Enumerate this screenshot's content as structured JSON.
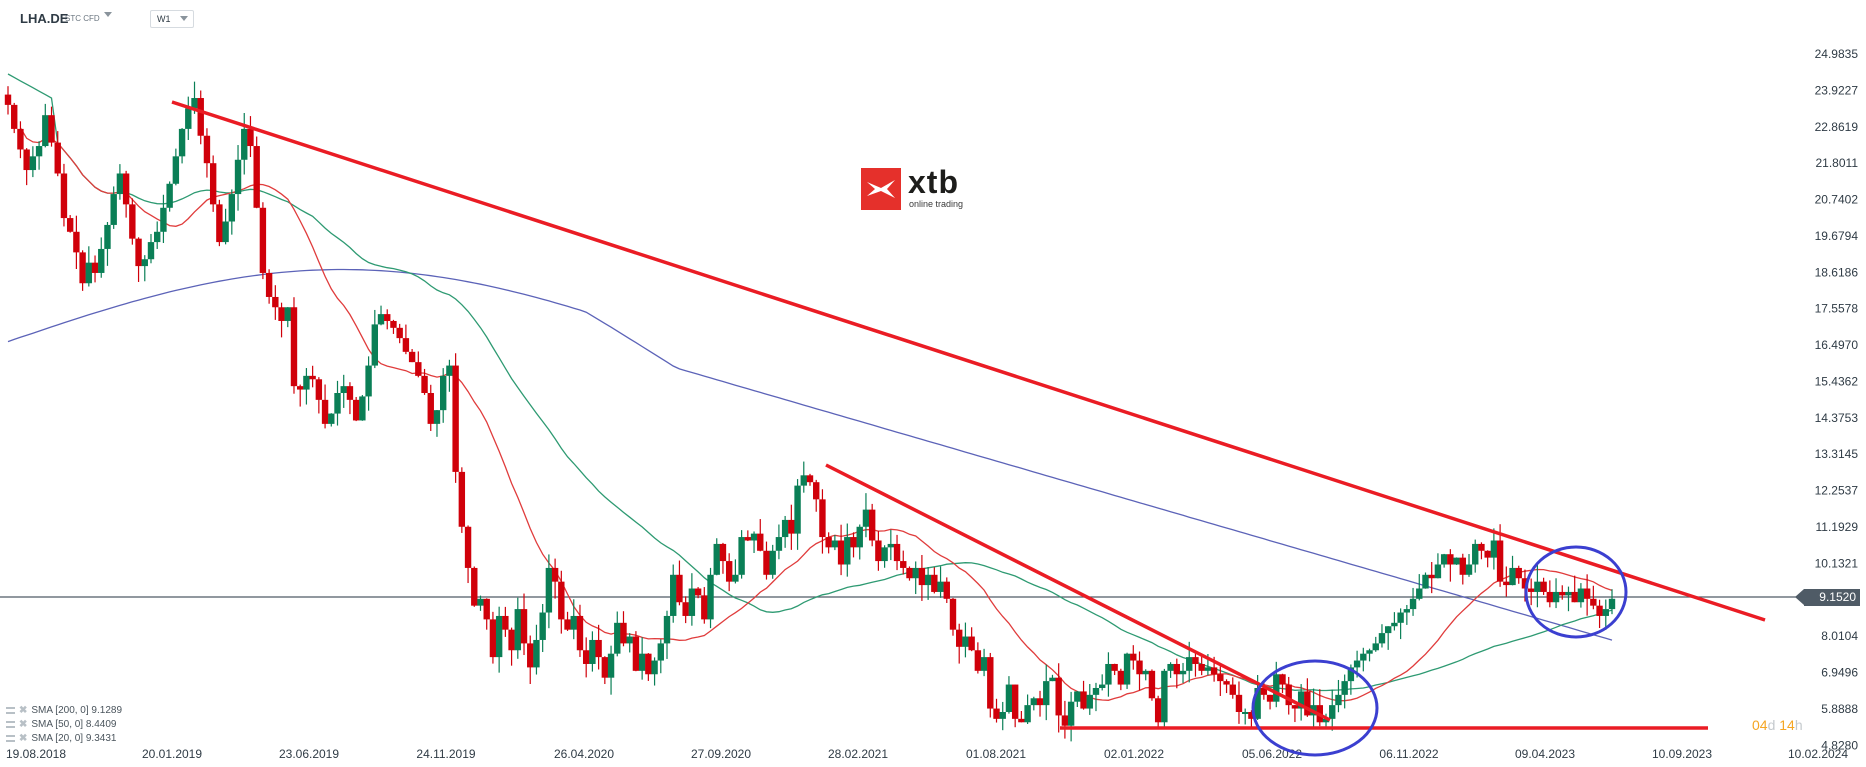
{
  "header": {
    "symbol": "LHA.DE",
    "instrument_type": "STC CFD",
    "timeframe": "W1"
  },
  "logo": {
    "word": "xtb",
    "tagline": "online trading"
  },
  "current_price": {
    "label": "9.1520",
    "value": 9.152,
    "line_color": "#4f5b66"
  },
  "countdown": {
    "days": "04",
    "days_unit": "d",
    "hours": "14",
    "hours_unit": "h"
  },
  "legend": [
    {
      "label": "SMA [200,  0] 9.1289"
    },
    {
      "label": "SMA [50,  0] 8.4409"
    },
    {
      "label": "SMA [20,  0] 9.3431"
    }
  ],
  "colors": {
    "bull": "#0a7f56",
    "bear": "#d0000a",
    "sma20": "#e03c3c",
    "sma50": "#2e9a72",
    "sma200": "#5c63b8",
    "trendline": "#ea1c24",
    "ellipse": "#3b3fd0"
  },
  "chart_data": {
    "type": "candlestick",
    "title": "LHA.DE STC CFD W1",
    "xlabel": "",
    "ylabel": "",
    "ylim": [
      4.828,
      24.9835
    ],
    "y_ticks": [
      "24.9835",
      "23.9227",
      "22.8619",
      "21.8011",
      "20.7402",
      "19.6794",
      "18.6186",
      "17.5578",
      "16.4970",
      "15.4362",
      "14.3753",
      "13.3145",
      "12.2537",
      "11.1929",
      "10.1321",
      "9.1520",
      "8.0104",
      "6.9496",
      "5.8888",
      "4.8280"
    ],
    "x_ticks": [
      "19.08.2018",
      "20.01.2019",
      "23.06.2019",
      "24.11.2019",
      "26.04.2020",
      "27.09.2020",
      "28.02.2021",
      "01.08.2021",
      "02.01.2022",
      "05.06.2022",
      "06.11.2022",
      "09.04.2023",
      "10.09.2023",
      "10.02.2024"
    ],
    "grid": false,
    "closes_weekly_approx": [
      23.5,
      22.8,
      22.2,
      21.6,
      22.0,
      22.3,
      23.2,
      22.4,
      21.5,
      20.2,
      19.8,
      19.2,
      18.3,
      18.9,
      18.6,
      19.3,
      20.0,
      20.9,
      21.5,
      20.6,
      19.6,
      18.8,
      19.0,
      19.5,
      19.8,
      20.5,
      21.2,
      22.0,
      22.8,
      23.4,
      23.7,
      22.6,
      21.8,
      20.6,
      19.5,
      20.1,
      20.9,
      21.9,
      22.8,
      22.3,
      20.5,
      18.6,
      17.9,
      17.6,
      17.2,
      17.6,
      15.3,
      15.2,
      15.6,
      15.5,
      14.9,
      14.2,
      14.5,
      15.1,
      15.3,
      14.9,
      14.3,
      15.0,
      15.9,
      17.1,
      17.4,
      17.2,
      17.0,
      16.7,
      16.3,
      16.0,
      15.6,
      15.1,
      14.2,
      14.6,
      15.6,
      15.9,
      12.8,
      11.2,
      10.0,
      8.9,
      9.1,
      8.5,
      7.4,
      8.6,
      8.2,
      7.6,
      8.8,
      7.8,
      7.1,
      7.9,
      8.7,
      10.0,
      9.6,
      8.5,
      8.2,
      8.6,
      7.6,
      7.2,
      7.9,
      7.4,
      6.8,
      7.5,
      8.4,
      7.8,
      8.0,
      7.0,
      7.5,
      6.9,
      7.3,
      7.8,
      8.6,
      9.8,
      9.0,
      8.6,
      9.4,
      9.2,
      8.5,
      9.8,
      10.7,
      10.2,
      9.6,
      9.8,
      10.9,
      10.8,
      11.0,
      10.5,
      9.8,
      10.5,
      10.9,
      11.4,
      11.0,
      12.4,
      12.7,
      12.5,
      12.0,
      10.9,
      10.6,
      10.8,
      10.1,
      10.9,
      10.6,
      11.2,
      11.7,
      10.8,
      10.2,
      10.6,
      10.7,
      10.2,
      10.0,
      9.7,
      10.0,
      9.5,
      9.8,
      9.3,
      9.6,
      9.1,
      8.2,
      7.7,
      8.0,
      7.6,
      7.0,
      7.4,
      5.9,
      5.6,
      5.8,
      6.6,
      5.6,
      5.5,
      6.0,
      6.2,
      6.0,
      6.7,
      6.8,
      5.7,
      5.4,
      6.1,
      6.4,
      5.9,
      6.3,
      6.5,
      6.6,
      7.2,
      7.0,
      6.6,
      7.5,
      7.3,
      6.9,
      7.0,
      6.2,
      5.5,
      7.0,
      7.2,
      6.9,
      7.0,
      7.4,
      7.2,
      7.0,
      7.1,
      6.9,
      6.7,
      6.6,
      6.3,
      5.8,
      5.8,
      5.6,
      6.5,
      6.3,
      6.1,
      6.9,
      6.6,
      6.0,
      5.9,
      6.4,
      5.7,
      6.0,
      5.5,
      5.6,
      6.0,
      6.3,
      6.7,
      7.1,
      7.3,
      7.5,
      7.6,
      7.8,
      8.1,
      8.3,
      8.4,
      8.7,
      8.8,
      9.1,
      9.4,
      9.8,
      9.7,
      10.1,
      10.4,
      10.1,
      10.3,
      9.8,
      10.1,
      10.7,
      10.5,
      10.3,
      10.8,
      9.6,
      9.5,
      10.0,
      9.7,
      9.4,
      9.3,
      9.6,
      9.3,
      9.0,
      9.3,
      9.2,
      9.3,
      9.0,
      9.4,
      9.1,
      8.9,
      8.6,
      8.8,
      9.1
    ],
    "series": [
      {
        "name": "SMA 200",
        "last_value": 9.1289
      },
      {
        "name": "SMA 50",
        "last_value": 8.4409
      },
      {
        "name": "SMA 20",
        "last_value": 9.3431
      }
    ],
    "annotations": [
      {
        "type": "trendline",
        "from": [
          "20.01.2019",
          23.7
        ],
        "to": [
          "after 10.09.2023",
          8.4
        ],
        "color": "#ea1c24"
      },
      {
        "type": "trendline",
        "from": [
          "28.02.2021",
          12.9
        ],
        "to": [
          "~08.2022",
          5.6
        ],
        "color": "#ea1c24"
      },
      {
        "type": "horizontal_support",
        "level": 5.3,
        "from": "~10.2021",
        "to": "~11.2023",
        "color": "#ea1c24"
      },
      {
        "type": "ellipse",
        "around": "05.06.2022–09.2022 breakout",
        "color": "#3b3fd0"
      },
      {
        "type": "ellipse",
        "around": "06.2023–08.2023 consolidation",
        "color": "#3b3fd0"
      }
    ]
  }
}
